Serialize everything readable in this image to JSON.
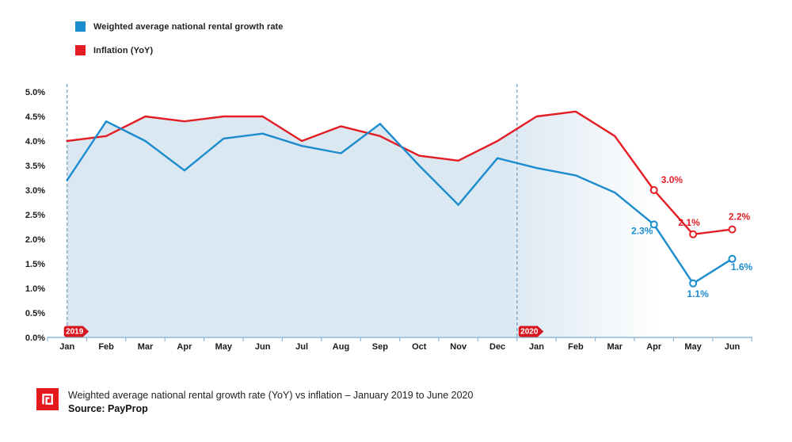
{
  "legend": {
    "items": [
      {
        "label": "Weighted average national rental growth rate",
        "color": "#1b8ccd"
      },
      {
        "label": "Inflation (YoY)",
        "color": "#e31d23"
      }
    ]
  },
  "chart_data": {
    "type": "line",
    "x_labels": [
      "Jan",
      "Feb",
      "Mar",
      "Apr",
      "May",
      "Jun",
      "Jul",
      "Aug",
      "Sep",
      "Oct",
      "Nov",
      "Dec",
      "Jan",
      "Feb",
      "Mar",
      "Apr",
      "May",
      "Jun"
    ],
    "series": [
      {
        "name": "Weighted average national rental growth rate",
        "color": "#1b8ccd",
        "values": [
          3.2,
          4.4,
          4.0,
          3.4,
          4.05,
          4.15,
          3.9,
          3.75,
          4.35,
          3.5,
          2.7,
          3.65,
          3.45,
          3.3,
          2.95,
          2.3,
          1.1,
          1.6
        ],
        "point_labels": {
          "15": "2.3%",
          "16": "1.1%",
          "17": "1.6%"
        }
      },
      {
        "name": "Inflation (YoY)",
        "color": "#e31d23",
        "values": [
          4.0,
          4.1,
          4.5,
          4.4,
          4.5,
          4.5,
          4.0,
          4.3,
          4.1,
          3.7,
          3.6,
          4.0,
          4.5,
          4.6,
          4.1,
          3.0,
          2.1,
          2.2
        ],
        "point_labels": {
          "15": "3.0%",
          "16": "2.1%",
          "17": "2.2%"
        }
      }
    ],
    "ylim": [
      0,
      5
    ],
    "y_tick_labels": [
      "0.0%",
      "0.5%",
      "1.0%",
      "1.5%",
      "2.0%",
      "2.5%",
      "3.0%",
      "3.5%",
      "4.0%",
      "4.5%",
      "5.0%"
    ],
    "grid": "off",
    "legend_position": "top-left",
    "area_fill": {
      "color": "#dbe8f2",
      "mode": "under-upper-envelope",
      "fade_right": true
    },
    "year_markers": [
      {
        "label": "2019",
        "at_x_index": 0
      },
      {
        "label": "2020",
        "at_boundary_after_index": 11
      }
    ],
    "badge_color": "#d7161f",
    "axis_color": "#8fb9d9",
    "dashed_line_color": "#74a3c7"
  },
  "footer": {
    "title": "Weighted average national rental growth rate (YoY) vs inflation – January 2019 to June 2020",
    "source": "Source: PayProp"
  }
}
